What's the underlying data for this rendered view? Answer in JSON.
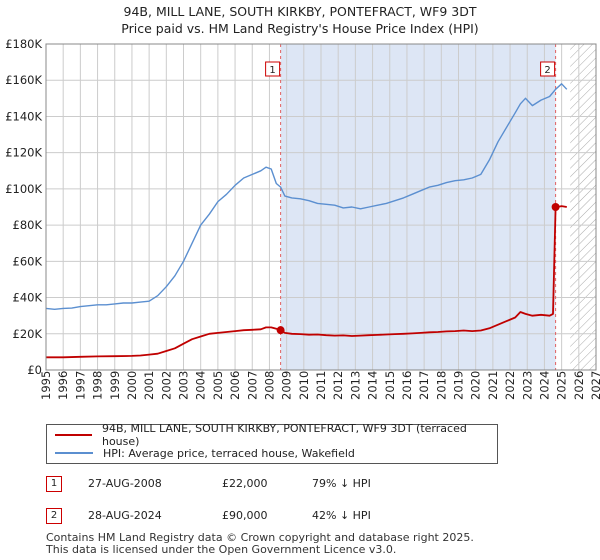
{
  "title": {
    "line1": "94B, MILL LANE, SOUTH KIRKBY, PONTEFRACT, WF9 3DT",
    "line2": "Price paid vs. HM Land Registry's House Price Index (HPI)"
  },
  "colors": {
    "property": "#c00000",
    "hpi": "#5b8fd0",
    "shade": "#dde6f5",
    "grid": "#cccccc"
  },
  "chart_data": {
    "type": "line",
    "title": "Price paid vs. HM Land Registry's House Price Index (HPI)",
    "xlabel": "",
    "ylabel": "",
    "xlim": [
      1995,
      2027
    ],
    "ylim": [
      0,
      180000
    ],
    "y_ticks": [
      0,
      20000,
      40000,
      60000,
      80000,
      100000,
      120000,
      140000,
      160000,
      180000
    ],
    "y_tick_labels": [
      "£0",
      "£20K",
      "£40K",
      "£60K",
      "£80K",
      "£100K",
      "£120K",
      "£140K",
      "£160K",
      "£180K"
    ],
    "x_ticks": [
      1995,
      1996,
      1997,
      1998,
      1999,
      2000,
      2001,
      2002,
      2003,
      2004,
      2005,
      2006,
      2007,
      2008,
      2009,
      2010,
      2011,
      2012,
      2013,
      2014,
      2015,
      2016,
      2017,
      2018,
      2019,
      2020,
      2021,
      2022,
      2023,
      2024,
      2025,
      2026,
      2027
    ],
    "shaded_range": [
      2008.65,
      2024.65
    ],
    "hatched_range": [
      2025.5,
      2027
    ],
    "series": [
      {
        "name": "94B, MILL LANE, SOUTH KIRKBY, PONTEFRACT, WF9 3DT (terraced house)",
        "color": "#c00000",
        "x": [
          1995.0,
          1996.0,
          1997.0,
          1998.0,
          1999.0,
          2000.0,
          2000.5,
          2001.0,
          2001.5,
          2002.0,
          2002.5,
          2003.0,
          2003.5,
          2004.0,
          2004.5,
          2005.0,
          2005.5,
          2006.0,
          2006.5,
          2007.0,
          2007.5,
          2007.8,
          2008.1,
          2008.4,
          2008.65,
          2008.9,
          2009.3,
          2009.8,
          2010.3,
          2010.8,
          2011.3,
          2011.8,
          2012.3,
          2012.8,
          2013.3,
          2013.8,
          2014.3,
          2014.8,
          2015.3,
          2015.8,
          2016.3,
          2016.8,
          2017.3,
          2017.8,
          2018.3,
          2018.8,
          2019.3,
          2019.8,
          2020.3,
          2020.8,
          2021.3,
          2021.8,
          2022.3,
          2022.6,
          2022.9,
          2023.3,
          2023.8,
          2024.3,
          2024.5,
          2024.65,
          2024.75,
          2025.0,
          2025.3
        ],
        "values": [
          7000,
          7000,
          7300,
          7500,
          7600,
          7800,
          8000,
          8500,
          9000,
          10500,
          12000,
          14500,
          17000,
          18500,
          20000,
          20500,
          21000,
          21500,
          22000,
          22200,
          22500,
          23500,
          23500,
          22800,
          22000,
          20500,
          20000,
          19800,
          19500,
          19600,
          19200,
          19000,
          19100,
          18800,
          19000,
          19200,
          19400,
          19600,
          19800,
          20000,
          20200,
          20500,
          20800,
          21000,
          21300,
          21500,
          21800,
          21500,
          21800,
          23000,
          25000,
          27000,
          29000,
          32000,
          31000,
          30000,
          30500,
          30000,
          31000,
          90000,
          90000,
          90500,
          90000
        ]
      },
      {
        "name": "HPI: Average price, terraced house, Wakefield",
        "color": "#5b8fd0",
        "x": [
          1995.0,
          1995.5,
          1996.0,
          1996.5,
          1997.0,
          1997.5,
          1998.0,
          1998.5,
          1999.0,
          1999.5,
          2000.0,
          2000.5,
          2001.0,
          2001.5,
          2002.0,
          2002.5,
          2003.0,
          2003.5,
          2004.0,
          2004.5,
          2005.0,
          2005.5,
          2006.0,
          2006.5,
          2007.0,
          2007.5,
          2007.8,
          2008.1,
          2008.4,
          2008.65,
          2008.9,
          2009.3,
          2009.8,
          2010.3,
          2010.8,
          2011.3,
          2011.8,
          2012.3,
          2012.8,
          2013.3,
          2013.8,
          2014.3,
          2014.8,
          2015.3,
          2015.8,
          2016.3,
          2016.8,
          2017.3,
          2017.8,
          2018.3,
          2018.8,
          2019.3,
          2019.8,
          2020.3,
          2020.8,
          2021.3,
          2021.8,
          2022.3,
          2022.6,
          2022.9,
          2023.3,
          2023.8,
          2024.3,
          2024.65,
          2025.0,
          2025.3
        ],
        "values": [
          34000,
          33500,
          34000,
          34200,
          35000,
          35500,
          36000,
          36000,
          36500,
          37000,
          37000,
          37500,
          38000,
          41000,
          46000,
          52000,
          60000,
          70000,
          80000,
          86000,
          93000,
          97000,
          102000,
          106000,
          108000,
          110000,
          112000,
          111000,
          103000,
          101000,
          96000,
          95000,
          94500,
          93500,
          92000,
          91500,
          91000,
          89500,
          90000,
          89000,
          90000,
          91000,
          92000,
          93500,
          95000,
          97000,
          99000,
          101000,
          102000,
          103500,
          104500,
          105000,
          106000,
          108000,
          116000,
          126000,
          134000,
          142000,
          147000,
          150000,
          146000,
          149000,
          151000,
          155000,
          158000,
          155000
        ]
      }
    ],
    "annotations": [
      {
        "label": "1",
        "x": 2008.65,
        "value": 22000
      },
      {
        "label": "2",
        "x": 2024.65,
        "value": 90000
      }
    ]
  },
  "legend": {
    "property_label": "94B, MILL LANE, SOUTH KIRKBY, PONTEFRACT, WF9 3DT (terraced house)",
    "hpi_label": "HPI: Average price, terraced house, Wakefield"
  },
  "sales": [
    {
      "num": "1",
      "date": "27-AUG-2008",
      "price": "£22,000",
      "hpi_diff": "79% ↓ HPI"
    },
    {
      "num": "2",
      "date": "28-AUG-2024",
      "price": "£90,000",
      "hpi_diff": "42% ↓ HPI"
    }
  ],
  "footer": {
    "line1": "Contains HM Land Registry data © Crown copyright and database right 2025.",
    "line2": "This data is licensed under the Open Government Licence v3.0."
  }
}
